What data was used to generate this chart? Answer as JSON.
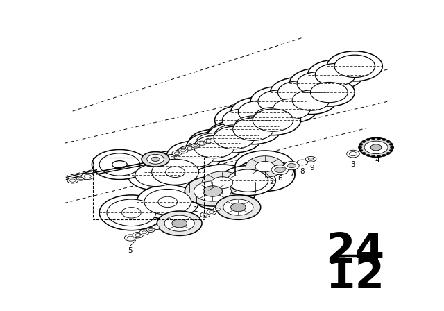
{
  "background_color": "#ffffff",
  "line_color": "#000000",
  "page_number_top": "24",
  "page_number_bottom": "12",
  "lw_main": 1.1,
  "lw_thin": 0.6,
  "lw_dashed": 0.7
}
